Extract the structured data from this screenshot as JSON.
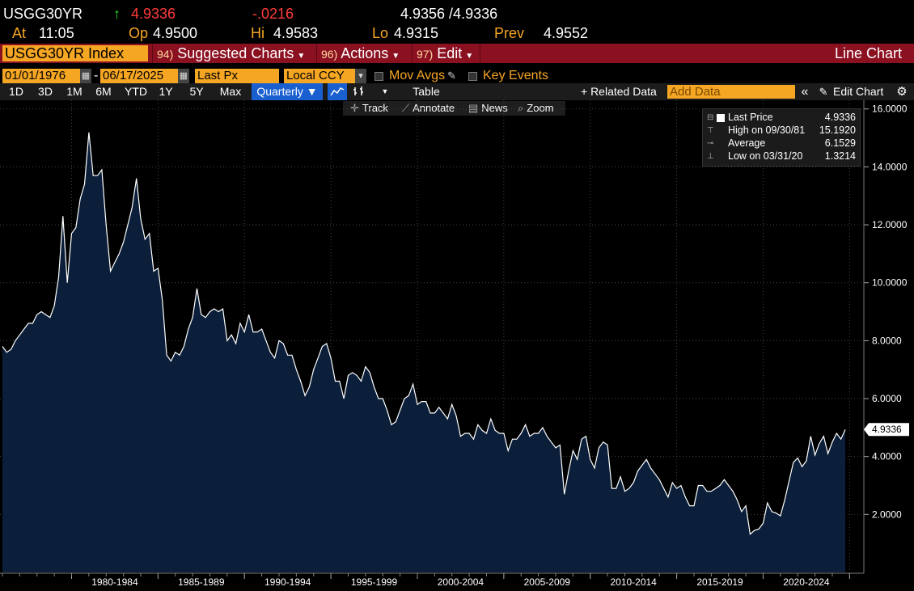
{
  "header": {
    "ticker": "USGG30YR",
    "arrow": "↑",
    "last": "4.9336",
    "change": "-.0216",
    "bid_ask": "4.9356 /4.9336",
    "at_label": "At",
    "at_time": "11:05",
    "op_label": "Op",
    "op_value": "4.9500",
    "hi_label": "Hi",
    "hi_value": "4.9583",
    "lo_label": "Lo",
    "lo_value": "4.9315",
    "prev_label": "Prev",
    "prev_value": "4.9552"
  },
  "command_bar": {
    "security": "USGG30YR Index",
    "suggested_num": "94)",
    "suggested_label": "Suggested Charts",
    "actions_num": "96)",
    "actions_label": "Actions",
    "edit_num": "97)",
    "edit_label": "Edit",
    "chart_type": "Line Chart"
  },
  "settings": {
    "start_date": "01/01/1976",
    "end_date": "06/17/2025",
    "dash": "-",
    "field": "Last Px",
    "currency": "Local CCY",
    "mov_avgs": "Mov Avgs",
    "key_events": "Key Events"
  },
  "range_bar": {
    "ranges": [
      "1D",
      "3D",
      "1M",
      "6M",
      "YTD",
      "1Y",
      "5Y",
      "Max"
    ],
    "period": "Quarterly",
    "table": "Table",
    "related": "+ Related Data",
    "add_placeholder": "Add Data",
    "edit_chart": "Edit Chart"
  },
  "tools": {
    "track": "Track",
    "annotate": "Annotate",
    "news": "News",
    "zoom": "Zoom"
  },
  "legend": {
    "rows": [
      {
        "label": "Last Price",
        "value": "4.9336"
      },
      {
        "label": "High on 09/30/81",
        "value": "15.1920"
      },
      {
        "label": "Average",
        "value": "6.1529"
      },
      {
        "label": "Low on 03/31/20",
        "value": "1.3214"
      }
    ]
  },
  "colors": {
    "accent": "#f5a623",
    "command_bar": "#8b1020",
    "area_fill": "#0b1f3a",
    "line": "#ffffff",
    "up": "#1ee61e",
    "down": "#ff3b3b"
  },
  "chart_data": {
    "type": "area",
    "title": "USGG30YR Index",
    "ylabel": "",
    "xlabel": "",
    "ylim": [
      0,
      16.3
    ],
    "y_ticks": [
      "2.0000",
      "4.0000",
      "6.0000",
      "8.0000",
      "10.0000",
      "12.0000",
      "14.0000",
      "16.0000"
    ],
    "x_ticks": [
      "1980-1984",
      "1985-1989",
      "1990-1994",
      "1995-1999",
      "2000-2004",
      "2005-2009",
      "2010-2014",
      "2015-2019",
      "2020-2024"
    ],
    "grid": true,
    "legend_position": "top-right",
    "last_label": "4.9336",
    "series": [
      {
        "name": "Last Price",
        "frequency": "quarterly",
        "start": "1976Q1",
        "values": [
          7.8,
          7.6,
          7.7,
          8.0,
          8.2,
          8.4,
          8.6,
          8.6,
          8.9,
          9.0,
          8.9,
          8.8,
          9.2,
          10.2,
          12.3,
          10.0,
          11.7,
          11.9,
          12.9,
          13.4,
          15.19,
          13.7,
          13.7,
          13.9,
          12.0,
          10.4,
          10.7,
          11.0,
          11.4,
          12.0,
          12.6,
          13.6,
          12.2,
          11.5,
          11.7,
          10.4,
          10.5,
          9.4,
          7.5,
          7.3,
          7.6,
          7.5,
          7.8,
          8.4,
          8.8,
          9.8,
          8.9,
          8.8,
          9.0,
          9.1,
          9.0,
          9.1,
          8.0,
          8.2,
          7.9,
          8.6,
          8.3,
          8.9,
          8.3,
          8.3,
          8.4,
          8.0,
          7.6,
          7.4,
          8.0,
          7.9,
          7.5,
          7.5,
          7.0,
          6.6,
          6.1,
          6.4,
          7.0,
          7.4,
          7.8,
          7.9,
          7.4,
          6.6,
          6.6,
          6.0,
          6.8,
          6.9,
          6.8,
          6.6,
          7.1,
          6.9,
          6.4,
          6.0,
          6.0,
          5.6,
          5.1,
          5.2,
          5.6,
          6.0,
          6.1,
          6.5,
          5.8,
          5.9,
          5.9,
          5.5,
          5.5,
          5.7,
          5.5,
          5.3,
          5.8,
          5.4,
          4.7,
          4.8,
          4.8,
          4.6,
          5.1,
          4.9,
          4.8,
          5.3,
          4.9,
          4.8,
          4.8,
          4.2,
          4.6,
          4.6,
          4.8,
          5.1,
          4.7,
          4.8,
          4.8,
          5.0,
          4.7,
          4.5,
          4.3,
          4.4,
          2.7,
          3.5,
          4.2,
          3.9,
          4.6,
          4.7,
          3.9,
          3.6,
          4.3,
          4.5,
          4.4,
          2.9,
          2.9,
          3.3,
          2.8,
          2.9,
          3.1,
          3.5,
          3.7,
          3.9,
          3.6,
          3.4,
          3.2,
          2.9,
          2.6,
          3.1,
          2.9,
          3.0,
          2.6,
          2.3,
          2.3,
          3.0,
          3.0,
          2.8,
          2.8,
          2.9,
          3.0,
          3.2,
          3.0,
          2.8,
          2.5,
          2.1,
          2.3,
          1.32,
          1.45,
          1.5,
          1.7,
          2.4,
          2.1,
          2.05,
          1.95,
          2.5,
          3.15,
          3.8,
          3.95,
          3.65,
          3.85,
          4.7,
          4.05,
          4.45,
          4.7,
          4.1,
          4.5,
          4.8,
          4.6,
          4.9336
        ]
      }
    ]
  }
}
